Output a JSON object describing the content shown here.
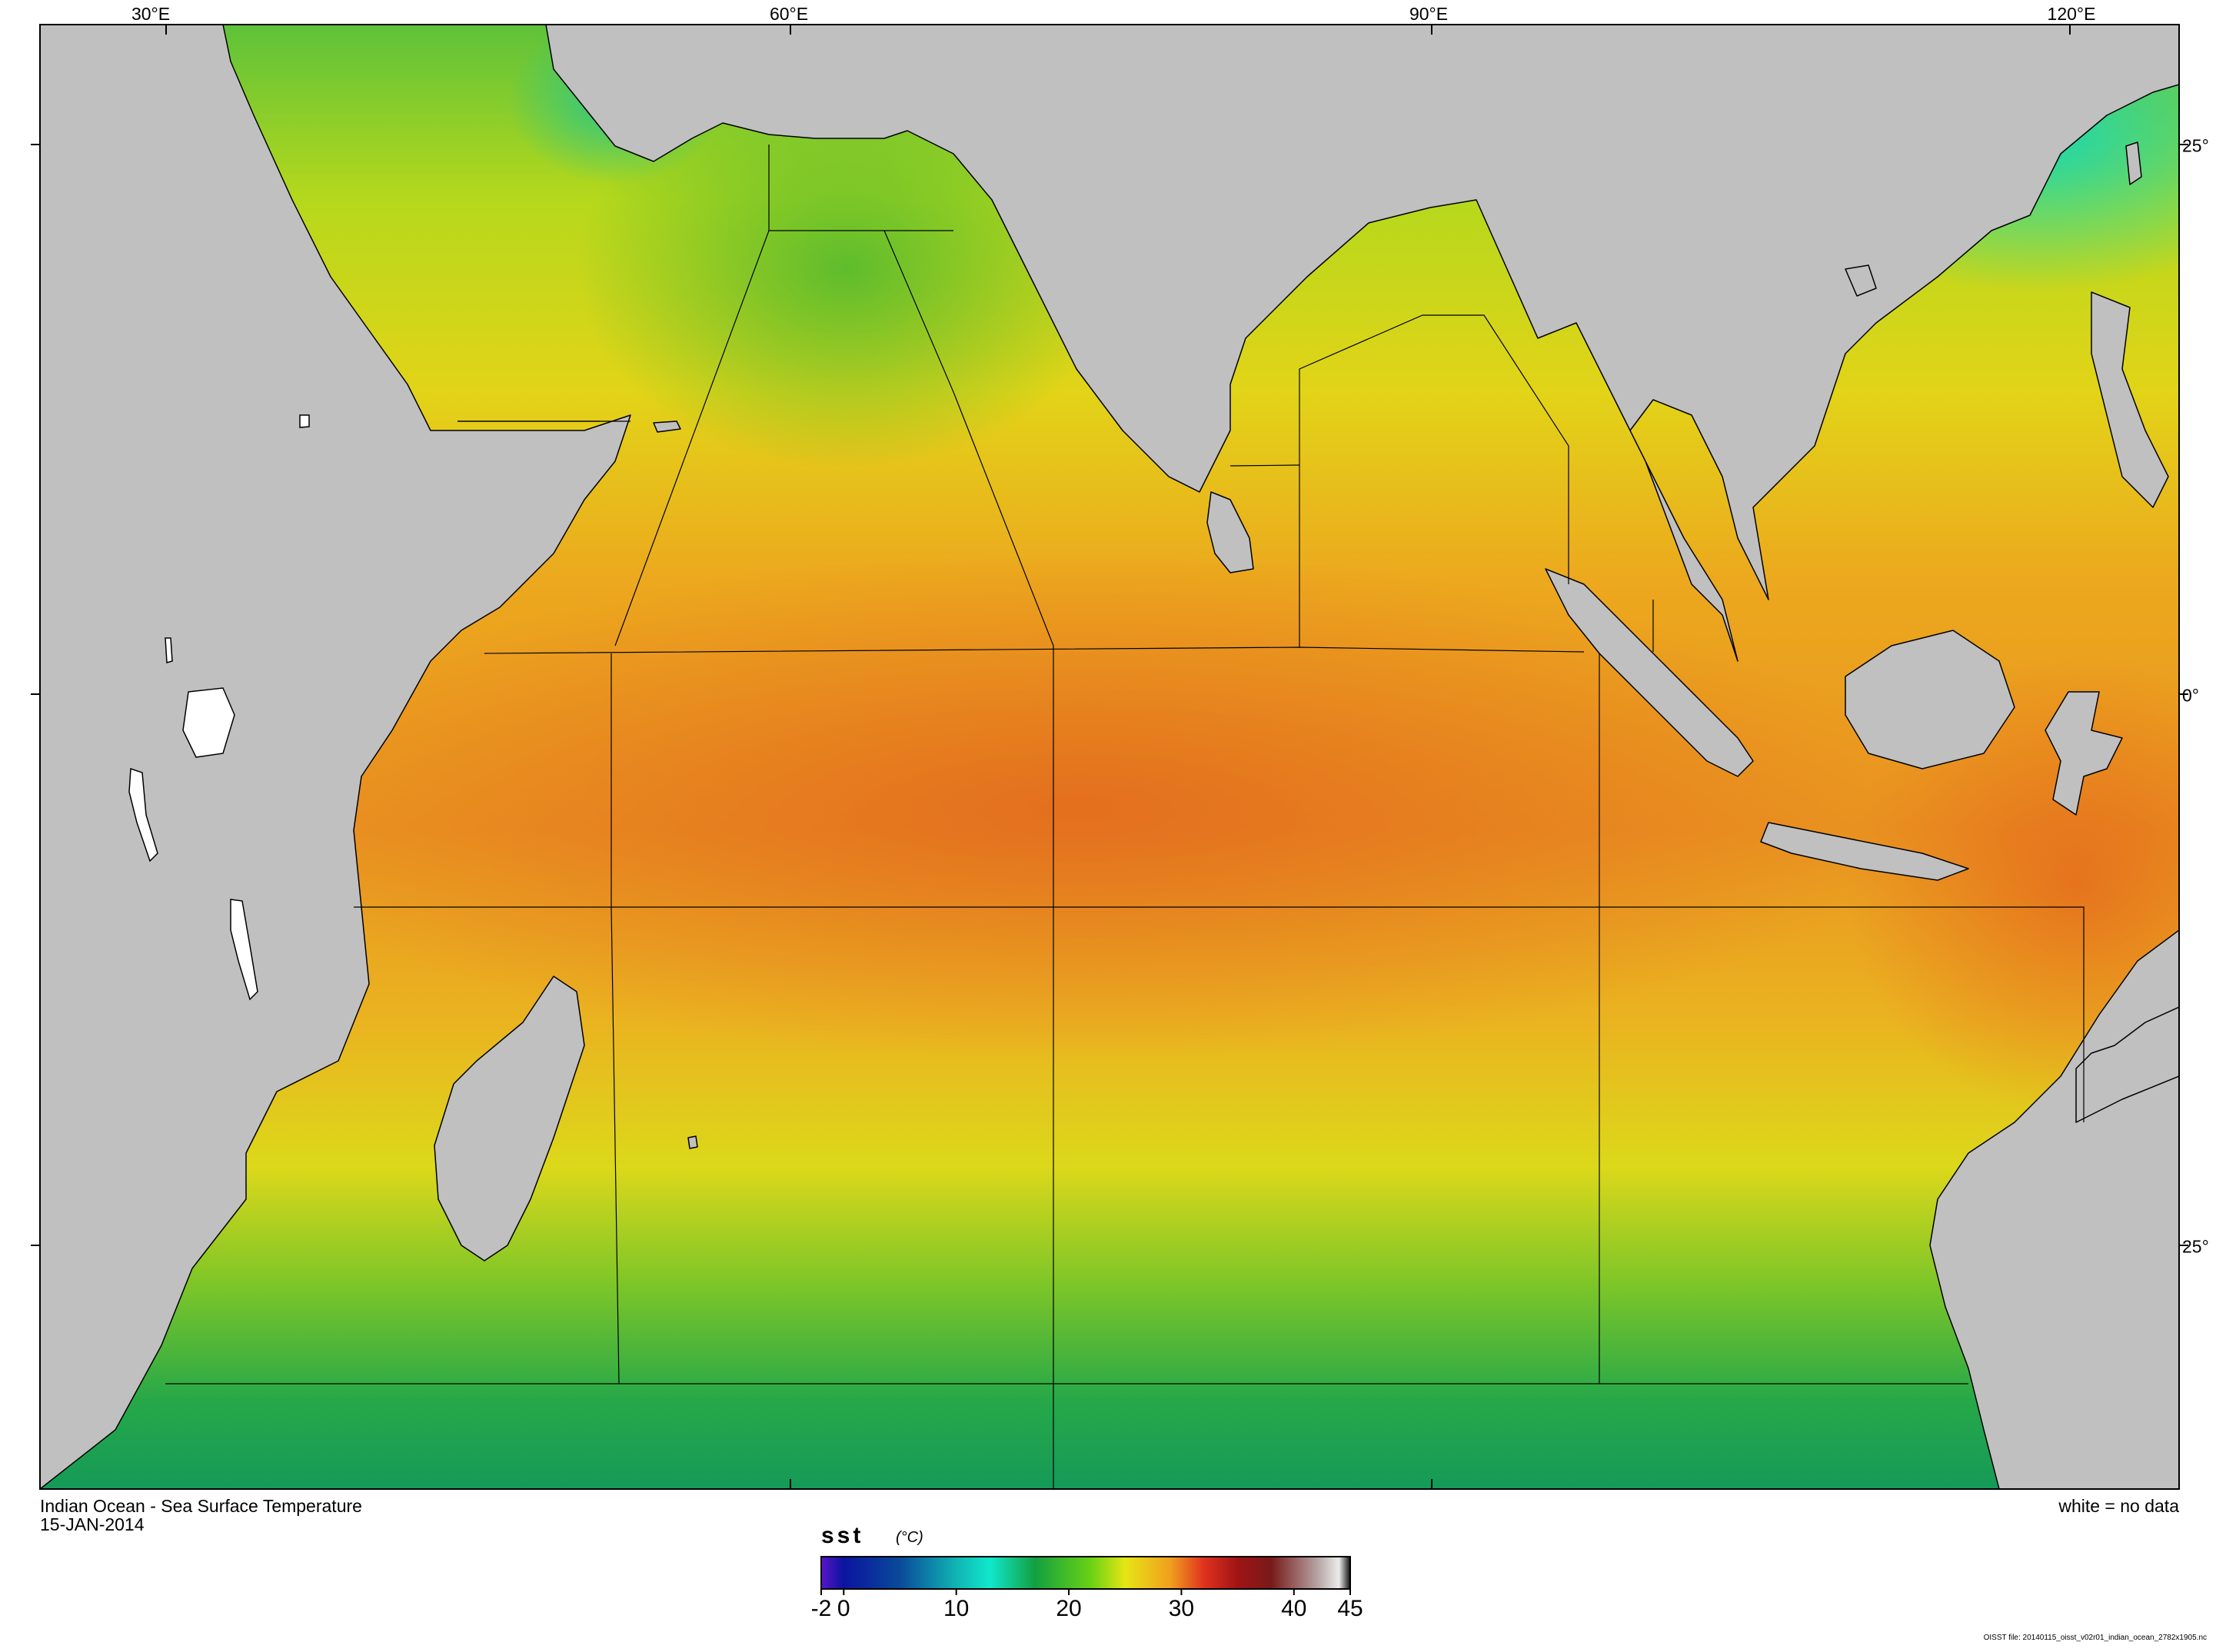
{
  "map": {
    "title": "Indian Ocean - Sea Surface Temperature",
    "date": "15-JAN-2014",
    "no_data_note": "white = no data",
    "file_label": "OISST file: 20140115_oisst_v02r01_indian_ocean_2782x1905.nc",
    "lon_labels": [
      "30°E",
      "60°E",
      "90°E",
      "120°E"
    ],
    "lat_labels": [
      "25°",
      "0°",
      "25°"
    ],
    "colors": {
      "land": "#c0c0c0",
      "no_data": "#ffffff",
      "frame": "#000000"
    }
  },
  "colorbar": {
    "variable": "sst",
    "units": "(°C)",
    "min": -2,
    "max": 45,
    "tick_labels": [
      "-2",
      "0",
      "10",
      "20",
      "30",
      "40",
      "45"
    ],
    "tick_values": [
      -2,
      0,
      10,
      20,
      30,
      40,
      45
    ],
    "stops": [
      {
        "value": -2,
        "color": "#5a14c8"
      },
      {
        "value": 0,
        "color": "#0a14a0"
      },
      {
        "value": 5,
        "color": "#0a4a9a"
      },
      {
        "value": 10,
        "color": "#10b4b4"
      },
      {
        "value": 13,
        "color": "#10e8cc"
      },
      {
        "value": 17,
        "color": "#12a040"
      },
      {
        "value": 22,
        "color": "#6ad214"
      },
      {
        "value": 25,
        "color": "#e6e614"
      },
      {
        "value": 29,
        "color": "#f0a01e"
      },
      {
        "value": 32,
        "color": "#e0321e"
      },
      {
        "value": 35,
        "color": "#a01414"
      },
      {
        "value": 38,
        "color": "#781a1a"
      },
      {
        "value": 42,
        "color": "#b4a0a0"
      },
      {
        "value": 44,
        "color": "#ebebeb"
      },
      {
        "value": 45,
        "color": "#101010"
      }
    ]
  }
}
